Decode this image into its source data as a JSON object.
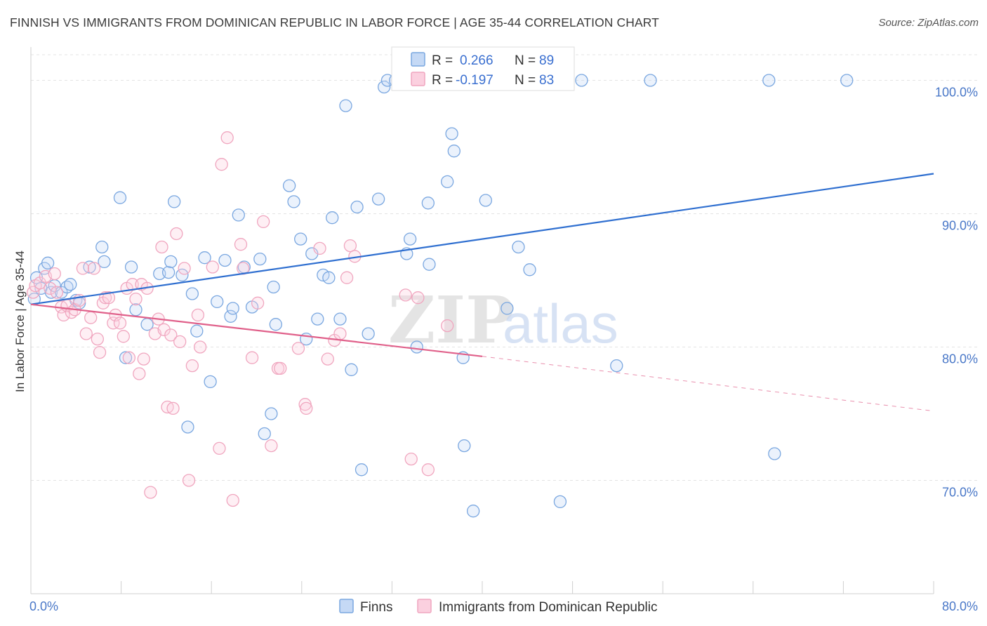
{
  "title": "FINNISH VS IMMIGRANTS FROM DOMINICAN REPUBLIC IN LABOR FORCE | AGE 35-44 CORRELATION CHART",
  "source": "Source: ZipAtlas.com",
  "chart_data": {
    "type": "scatter",
    "ylabel": "In Labor Force | Age 35-44",
    "xlim": [
      0,
      80
    ],
    "ylim": [
      61.5,
      102.5
    ],
    "x_tick_labels": [
      "0.0%",
      "80.0%"
    ],
    "y_ticks": [
      70,
      80,
      90,
      100
    ],
    "y_tick_labels": [
      "70.0%",
      "80.0%",
      "90.0%",
      "100.0%"
    ],
    "grid": "horizontal dashed",
    "legend_top": {
      "rows": [
        {
          "r_label": "R = ",
          "r_value": "0.266",
          "n_label": "N = ",
          "n_value": "89"
        },
        {
          "r_label": "R = ",
          "r_value": "-0.197",
          "n_label": "N = ",
          "n_value": "83"
        }
      ]
    },
    "series": [
      {
        "name": "Finns",
        "color": "#7aa7e0",
        "trend_color": "#2f6fd0",
        "trend": {
          "x0": 0,
          "y0": 83.2,
          "x1": 80,
          "y1": 93.0
        },
        "points": [
          [
            0.3,
            83.6
          ],
          [
            0.5,
            85.2
          ],
          [
            0.9,
            84.4
          ],
          [
            1.2,
            85.9
          ],
          [
            1.5,
            86.3
          ],
          [
            1.8,
            84.1
          ],
          [
            2.1,
            84.6
          ],
          [
            2.7,
            84.1
          ],
          [
            3.2,
            84.5
          ],
          [
            3.5,
            84.7
          ],
          [
            4.0,
            83.5
          ],
          [
            4.3,
            83.3
          ],
          [
            5.2,
            86.0
          ],
          [
            6.3,
            87.5
          ],
          [
            6.5,
            86.4
          ],
          [
            7.9,
            91.2
          ],
          [
            8.4,
            79.2
          ],
          [
            8.9,
            86.0
          ],
          [
            9.3,
            82.8
          ],
          [
            10.3,
            81.7
          ],
          [
            11.4,
            85.5
          ],
          [
            12.2,
            85.6
          ],
          [
            12.4,
            86.4
          ],
          [
            12.7,
            90.9
          ],
          [
            13.4,
            85.4
          ],
          [
            13.9,
            74.0
          ],
          [
            14.3,
            84.0
          ],
          [
            14.7,
            81.2
          ],
          [
            15.4,
            86.7
          ],
          [
            15.9,
            77.4
          ],
          [
            16.5,
            83.4
          ],
          [
            17.2,
            86.5
          ],
          [
            17.7,
            82.3
          ],
          [
            17.9,
            82.9
          ],
          [
            18.4,
            89.9
          ],
          [
            18.9,
            86.0
          ],
          [
            19.6,
            83.0
          ],
          [
            20.3,
            86.6
          ],
          [
            20.7,
            73.5
          ],
          [
            21.3,
            75.0
          ],
          [
            21.5,
            84.5
          ],
          [
            21.7,
            81.7
          ],
          [
            22.9,
            92.1
          ],
          [
            23.3,
            90.9
          ],
          [
            23.9,
            88.1
          ],
          [
            24.4,
            80.6
          ],
          [
            24.9,
            87.0
          ],
          [
            25.4,
            82.1
          ],
          [
            25.9,
            85.4
          ],
          [
            26.4,
            85.2
          ],
          [
            26.7,
            89.7
          ],
          [
            27.4,
            82.1
          ],
          [
            27.9,
            98.1
          ],
          [
            28.4,
            78.3
          ],
          [
            28.9,
            90.5
          ],
          [
            29.3,
            70.8
          ],
          [
            29.9,
            81.0
          ],
          [
            30.8,
            91.1
          ],
          [
            31.3,
            99.5
          ],
          [
            31.6,
            100.0
          ],
          [
            32.3,
            100.0
          ],
          [
            33.3,
            87.0
          ],
          [
            33.6,
            88.1
          ],
          [
            34.2,
            80.0
          ],
          [
            34.7,
            100.0
          ],
          [
            35.3,
            86.2
          ],
          [
            35.2,
            90.8
          ],
          [
            36.9,
            92.4
          ],
          [
            37.3,
            96.0
          ],
          [
            37.5,
            94.7
          ],
          [
            38.3,
            79.2
          ],
          [
            38.4,
            72.6
          ],
          [
            39.2,
            67.7
          ],
          [
            40.3,
            91.0
          ],
          [
            42.2,
            82.9
          ],
          [
            43.2,
            87.5
          ],
          [
            44.2,
            85.8
          ],
          [
            44.7,
            100.0
          ],
          [
            46.2,
            100.0
          ],
          [
            46.9,
            68.4
          ],
          [
            48.8,
            100.0
          ],
          [
            51.9,
            78.6
          ],
          [
            54.9,
            100.0
          ],
          [
            65.4,
            100.0
          ],
          [
            65.9,
            72.0
          ],
          [
            72.3,
            100.0
          ]
        ]
      },
      {
        "name": "Immigrants from Dominican Republic",
        "color": "#f0a6bf",
        "trend_color": "#e0608a",
        "trend": {
          "x0": 0,
          "y0": 83.2,
          "x1": 40,
          "y1": 79.3
        },
        "trend_dashed": {
          "x0": 40,
          "y0": 79.3,
          "x1": 80,
          "y1": 75.2
        },
        "points": [
          [
            0.2,
            84.1
          ],
          [
            0.4,
            84.6
          ],
          [
            0.8,
            84.8
          ],
          [
            1.3,
            85.3
          ],
          [
            1.7,
            84.4
          ],
          [
            2.1,
            85.5
          ],
          [
            2.3,
            84.1
          ],
          [
            2.7,
            83.0
          ],
          [
            2.9,
            82.4
          ],
          [
            3.2,
            83.1
          ],
          [
            3.6,
            82.6
          ],
          [
            3.9,
            82.8
          ],
          [
            4.3,
            83.5
          ],
          [
            4.6,
            85.9
          ],
          [
            4.9,
            81.0
          ],
          [
            5.3,
            82.2
          ],
          [
            5.6,
            85.9
          ],
          [
            5.9,
            80.6
          ],
          [
            6.1,
            79.6
          ],
          [
            6.4,
            83.3
          ],
          [
            6.6,
            83.7
          ],
          [
            6.9,
            83.7
          ],
          [
            7.3,
            81.8
          ],
          [
            7.5,
            82.4
          ],
          [
            7.9,
            81.8
          ],
          [
            8.2,
            80.8
          ],
          [
            8.5,
            84.4
          ],
          [
            8.7,
            79.2
          ],
          [
            9.0,
            84.7
          ],
          [
            9.3,
            83.6
          ],
          [
            9.6,
            78.0
          ],
          [
            9.8,
            84.7
          ],
          [
            10.0,
            79.1
          ],
          [
            10.3,
            84.4
          ],
          [
            10.6,
            69.1
          ],
          [
            11.0,
            81.0
          ],
          [
            11.3,
            82.1
          ],
          [
            11.6,
            87.5
          ],
          [
            11.8,
            81.3
          ],
          [
            12.1,
            75.5
          ],
          [
            12.4,
            80.9
          ],
          [
            12.6,
            75.4
          ],
          [
            12.9,
            88.5
          ],
          [
            13.2,
            80.4
          ],
          [
            13.6,
            85.9
          ],
          [
            14.0,
            70.0
          ],
          [
            14.3,
            78.6
          ],
          [
            14.8,
            82.4
          ],
          [
            15.0,
            80.0
          ],
          [
            16.1,
            86.0
          ],
          [
            16.7,
            72.4
          ],
          [
            16.9,
            93.7
          ],
          [
            17.4,
            95.7
          ],
          [
            17.9,
            68.5
          ],
          [
            18.6,
            87.7
          ],
          [
            18.8,
            85.9
          ],
          [
            19.6,
            79.2
          ],
          [
            20.1,
            83.3
          ],
          [
            20.6,
            89.4
          ],
          [
            21.3,
            72.6
          ],
          [
            21.9,
            78.4
          ],
          [
            22.1,
            78.4
          ],
          [
            23.7,
            79.9
          ],
          [
            24.3,
            75.7
          ],
          [
            24.4,
            75.4
          ],
          [
            25.6,
            87.4
          ],
          [
            26.3,
            79.1
          ],
          [
            26.9,
            80.5
          ],
          [
            27.4,
            81.0
          ],
          [
            28.0,
            85.2
          ],
          [
            28.3,
            87.6
          ],
          [
            28.7,
            86.8
          ],
          [
            33.2,
            83.9
          ],
          [
            33.7,
            71.6
          ],
          [
            34.3,
            83.7
          ],
          [
            35.2,
            70.8
          ],
          [
            36.9,
            81.6
          ]
        ]
      }
    ]
  },
  "legend_bottom": [
    "Finns",
    "Immigrants from Dominican Republic"
  ],
  "watermark": {
    "part1": "ZIP",
    "part2": "atlas"
  }
}
